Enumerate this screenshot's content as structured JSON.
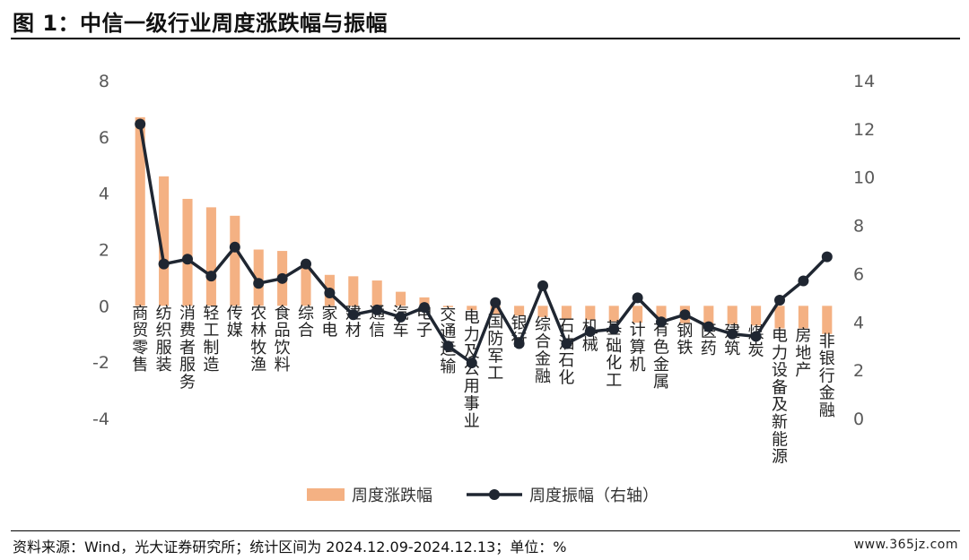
{
  "title": "图 1：中信一级行业周度涨跌幅与振幅",
  "source": "资料来源：Wind，光大证券研究所；统计区间为 2024.12.09-2024.12.13；单位：%",
  "watermark": "www.365jz.com",
  "colors": {
    "bar": "#F4B183",
    "line": "#1F2631"
  },
  "chart_data": {
    "type": "bar",
    "categories": [
      "商贸零售",
      "纺织服装",
      "消费者服务",
      "轻工制造",
      "传媒",
      "农林牧渔",
      "食品饮料",
      "综合",
      "家电",
      "建材",
      "通信",
      "汽车",
      "电子",
      "交通运输",
      "电力及公用事业",
      "国防军工",
      "银行",
      "综合金融",
      "石油石化",
      "机械",
      "基础化工",
      "计算机",
      "有色金属",
      "钢铁",
      "医药",
      "建筑",
      "煤炭",
      "电力设备及新能源",
      "房地产",
      "非银行金融"
    ],
    "series": [
      {
        "name": "周度涨跌幅",
        "type": "bar",
        "axis": "left",
        "values": [
          6.7,
          4.6,
          3.8,
          3.5,
          3.2,
          2.0,
          1.95,
          1.4,
          1.1,
          1.05,
          0.9,
          0.5,
          0.3,
          -0.05,
          -0.15,
          -0.3,
          -0.35,
          -0.4,
          -0.45,
          -0.5,
          -0.55,
          -0.6,
          -0.6,
          -0.62,
          -0.65,
          -0.65,
          -0.7,
          -0.8,
          -0.8,
          -1.0
        ]
      },
      {
        "name": "周度振幅（右轴）",
        "type": "line",
        "axis": "right",
        "values": [
          12.2,
          6.4,
          6.6,
          5.9,
          7.1,
          5.6,
          5.8,
          6.4,
          5.2,
          4.3,
          4.5,
          4.2,
          4.6,
          3.0,
          2.3,
          4.8,
          3.1,
          5.5,
          3.1,
          3.6,
          3.7,
          5.0,
          4.0,
          4.3,
          3.8,
          3.5,
          3.4,
          4.9,
          5.7,
          6.7
        ]
      }
    ],
    "left_axis": {
      "ylim": [
        -4,
        8
      ],
      "ticks": [
        "8",
        "6",
        "4",
        "2",
        "0",
        "-2",
        "-4"
      ]
    },
    "right_axis": {
      "ylim": [
        0,
        14
      ],
      "ticks": [
        "14",
        "12",
        "10",
        "8",
        "6",
        "4",
        "2",
        "0"
      ]
    },
    "grid": false,
    "legend_position": "bottom"
  }
}
